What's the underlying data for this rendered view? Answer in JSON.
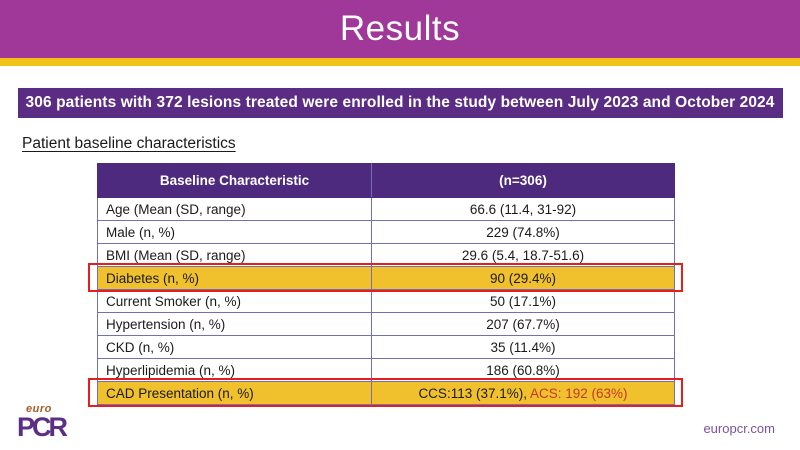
{
  "slide": {
    "title": "Results",
    "banner_text": "306 patients with 372 lesions treated were enrolled in the study between July 2023 and October 2024",
    "section_heading": "Patient baseline characteristics"
  },
  "footer": {
    "logo_top": "euro",
    "logo_bottom": "PCR",
    "url": "europcr.com"
  },
  "colors": {
    "title_band_magenta": "#A03899",
    "gold_bar": "#EFC318",
    "banner_purple": "#5B2C83",
    "table_header_purple": "#4E2A7E",
    "highlight_gold": "#F1C12D",
    "highlight_outline_red": "#E61E1E",
    "acs_text_red": "#C0392B",
    "table_border": "#7070B2",
    "logo_purple": "#5D2E86",
    "logo_euro_orange": "#A85B28"
  },
  "chart_data": {
    "type": "table",
    "title": "Patient baseline characteristics",
    "columns": [
      "Baseline Characteristic",
      "(n=306)"
    ],
    "rows": [
      {
        "label": "Age (Mean (SD, range)",
        "value": "66.6 (11.4, 31-92)",
        "highlighted": false
      },
      {
        "label": "Male (n, %)",
        "value": "229 (74.8%)",
        "highlighted": false
      },
      {
        "label": "BMI (Mean (SD, range)",
        "value": "29.6 (5.4, 18.7-51.6)",
        "highlighted": false
      },
      {
        "label": "Diabetes (n, %)",
        "value": "90 (29.4%)",
        "highlighted": true
      },
      {
        "label": "Current Smoker (n, %)",
        "value": "50 (17.1%)",
        "highlighted": false
      },
      {
        "label": "Hypertension (n, %)",
        "value": "207 (67.7%)",
        "highlighted": false
      },
      {
        "label": "CKD (n, %)",
        "value": "35 (11.4%)",
        "highlighted": false
      },
      {
        "label": "Hyperlipidemia (n, %)",
        "value": "186 (60.8%)",
        "highlighted": false
      },
      {
        "label": "CAD Presentation (n, %)",
        "value": "CCS:113 (37.1%), ",
        "value_red": "ACS: 192 (63%)",
        "highlighted": true
      }
    ]
  }
}
